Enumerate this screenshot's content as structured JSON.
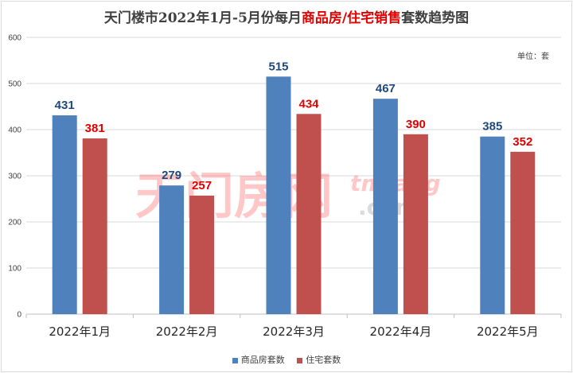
{
  "title": {
    "part1": "天门楼市2022年1月-5月份每月",
    "part2": "商品房/住宅销售",
    "part3": "套数趋势图"
  },
  "unit_label": "单位：套",
  "watermark": {
    "cn": "天门房网",
    "en1": "tmfang",
    "en2": ".com"
  },
  "colors": {
    "series1": "#4f81bd",
    "series2": "#c0504d",
    "label1": "#1f497d",
    "label2": "#e00000",
    "title_highlight": "#e00000"
  },
  "chart_data": {
    "type": "bar",
    "categories": [
      "2022年1月",
      "2022年2月",
      "2022年3月",
      "2022年4月",
      "2022年5月"
    ],
    "series": [
      {
        "name": "商品房套数",
        "values": [
          431,
          279,
          515,
          467,
          385
        ]
      },
      {
        "name": "住宅套数",
        "values": [
          381,
          257,
          434,
          390,
          352
        ]
      }
    ],
    "ylim": [
      0,
      600
    ],
    "yticks": [
      0,
      100,
      200,
      300,
      400,
      500,
      600
    ],
    "grid": true,
    "legend_position": "bottom",
    "data_labels": true
  }
}
